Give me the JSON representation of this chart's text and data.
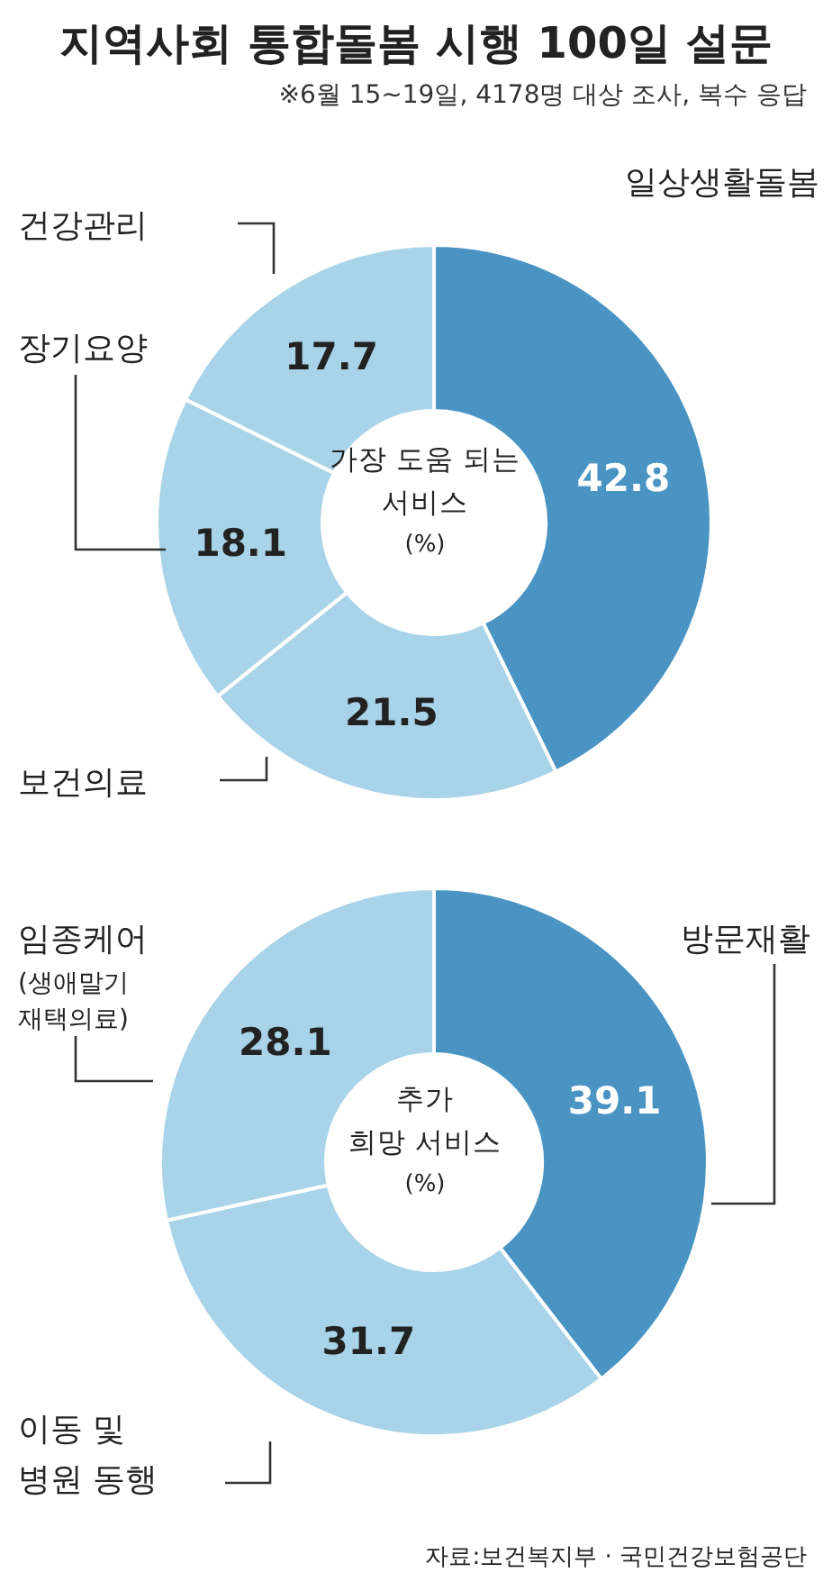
{
  "chart_data": [
    {
      "type": "donut",
      "title": "지역사회 통합돌봄 시행 100일 설문",
      "subtitle": "※6월 15~19일, 4178명 대상 조사, 복수 응답",
      "annotations": [
        "가장 도움 되는\n서비스",
        "(%)"
      ],
      "categories": [
        "일상생활돌봄",
        "보건의료",
        "장기요양",
        "건강관리"
      ],
      "values": [
        42.8,
        21.5,
        18.1,
        17.7
      ],
      "colors": [
        "#4a94c4",
        "#a9d3e8",
        "#a9d3e8",
        "#a9d3e8"
      ],
      "data_labels": true
    },
    {
      "type": "donut",
      "annotations": [
        "추가\n희망 서비스",
        "(%)",
        "자료:보건복지부 · 국민건강보험공단"
      ],
      "categories": [
        "방문재활",
        "이동 및\n병원 동행",
        "임종케어\n(생애말기\n재택의료)"
      ],
      "values": [
        39.1,
        31.7,
        28.1
      ],
      "colors": [
        "#4a94c4",
        "#a9d3e8",
        "#a9d3e8"
      ],
      "data_labels": true
    }
  ]
}
